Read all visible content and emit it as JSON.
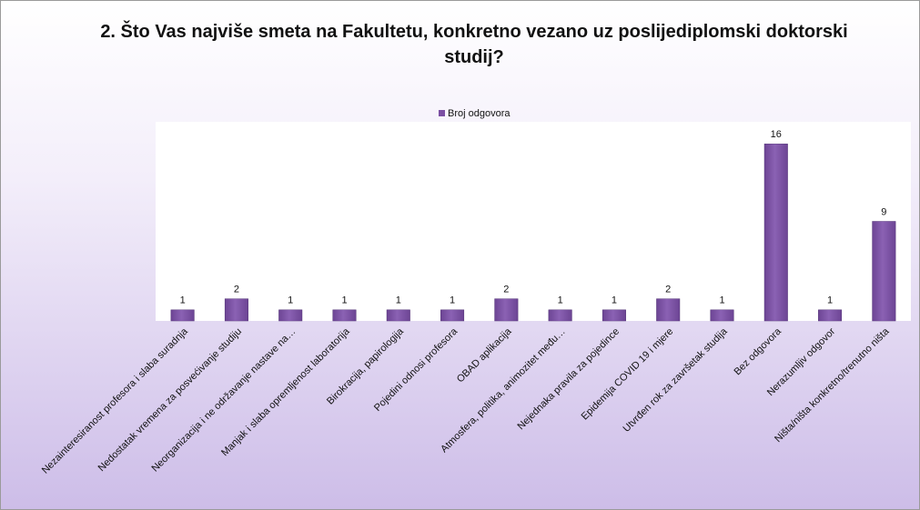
{
  "chart_data": {
    "type": "bar",
    "title": "2. Što Vas najviše smeta na Fakultetu, konkretno vezano uz poslijediplomski doktorski studij?",
    "categories": [
      "Nezainteresiranost profesora i slaba suradnja",
      "Nedostatak vremena za posvećivanje studiju",
      "Neorganizacija i ne održavanje nastave na…",
      "Manjak i slaba opremljenost laboratorija",
      "Birokracija, papirologija",
      "Pojedini odnosi profesora",
      "OBAD aplikacija",
      "Atmosfera, politika, animozitet među…",
      "Nejednaka pravila za pojedince",
      "Epidemija COVID 19 i mjere",
      "Utvrđen rok za završetak studija",
      "Bez odgovora",
      "Nerazumljiv odgovor",
      "Ništa/ništa konkretno/trenutno ništa"
    ],
    "series": [
      {
        "name": "Broj odgovora",
        "color": "#7b4fa3",
        "values": [
          1,
          2,
          1,
          1,
          1,
          1,
          2,
          1,
          1,
          2,
          1,
          16,
          1,
          9
        ]
      }
    ],
    "ylim": [
      0,
      18
    ],
    "legend": "top"
  }
}
